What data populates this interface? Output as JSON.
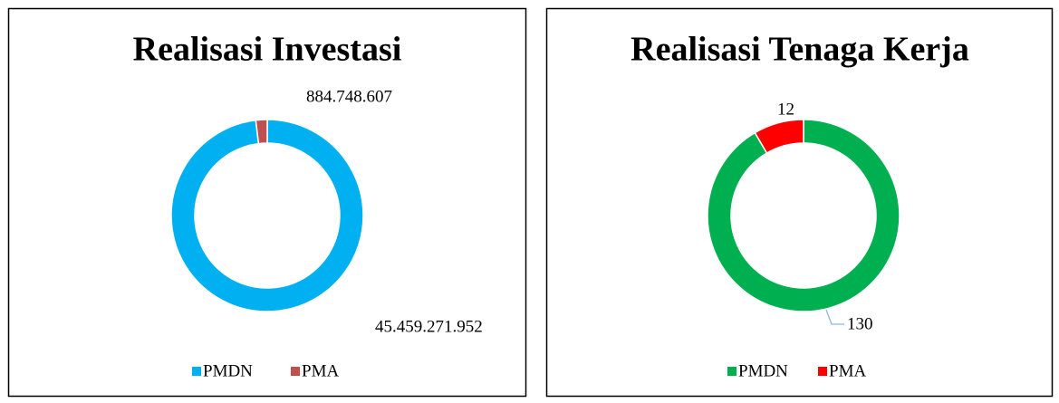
{
  "chart_data": [
    {
      "type": "donut",
      "title": "Realisasi Investasi",
      "categories": [
        "PMDN",
        "PMA"
      ],
      "values": [
        45459271952,
        884748607
      ],
      "value_labels": [
        "45.459.271.952",
        "884.748.607"
      ],
      "colors": [
        "#00b0f0",
        "#c0504d"
      ],
      "legend": "bottom"
    },
    {
      "type": "donut",
      "title": "Realisasi Tenaga Kerja",
      "categories": [
        "PMDN",
        "PMA"
      ],
      "values": [
        130,
        12
      ],
      "colors": [
        "#00b050",
        "#ff0000"
      ],
      "legend": "bottom"
    }
  ]
}
